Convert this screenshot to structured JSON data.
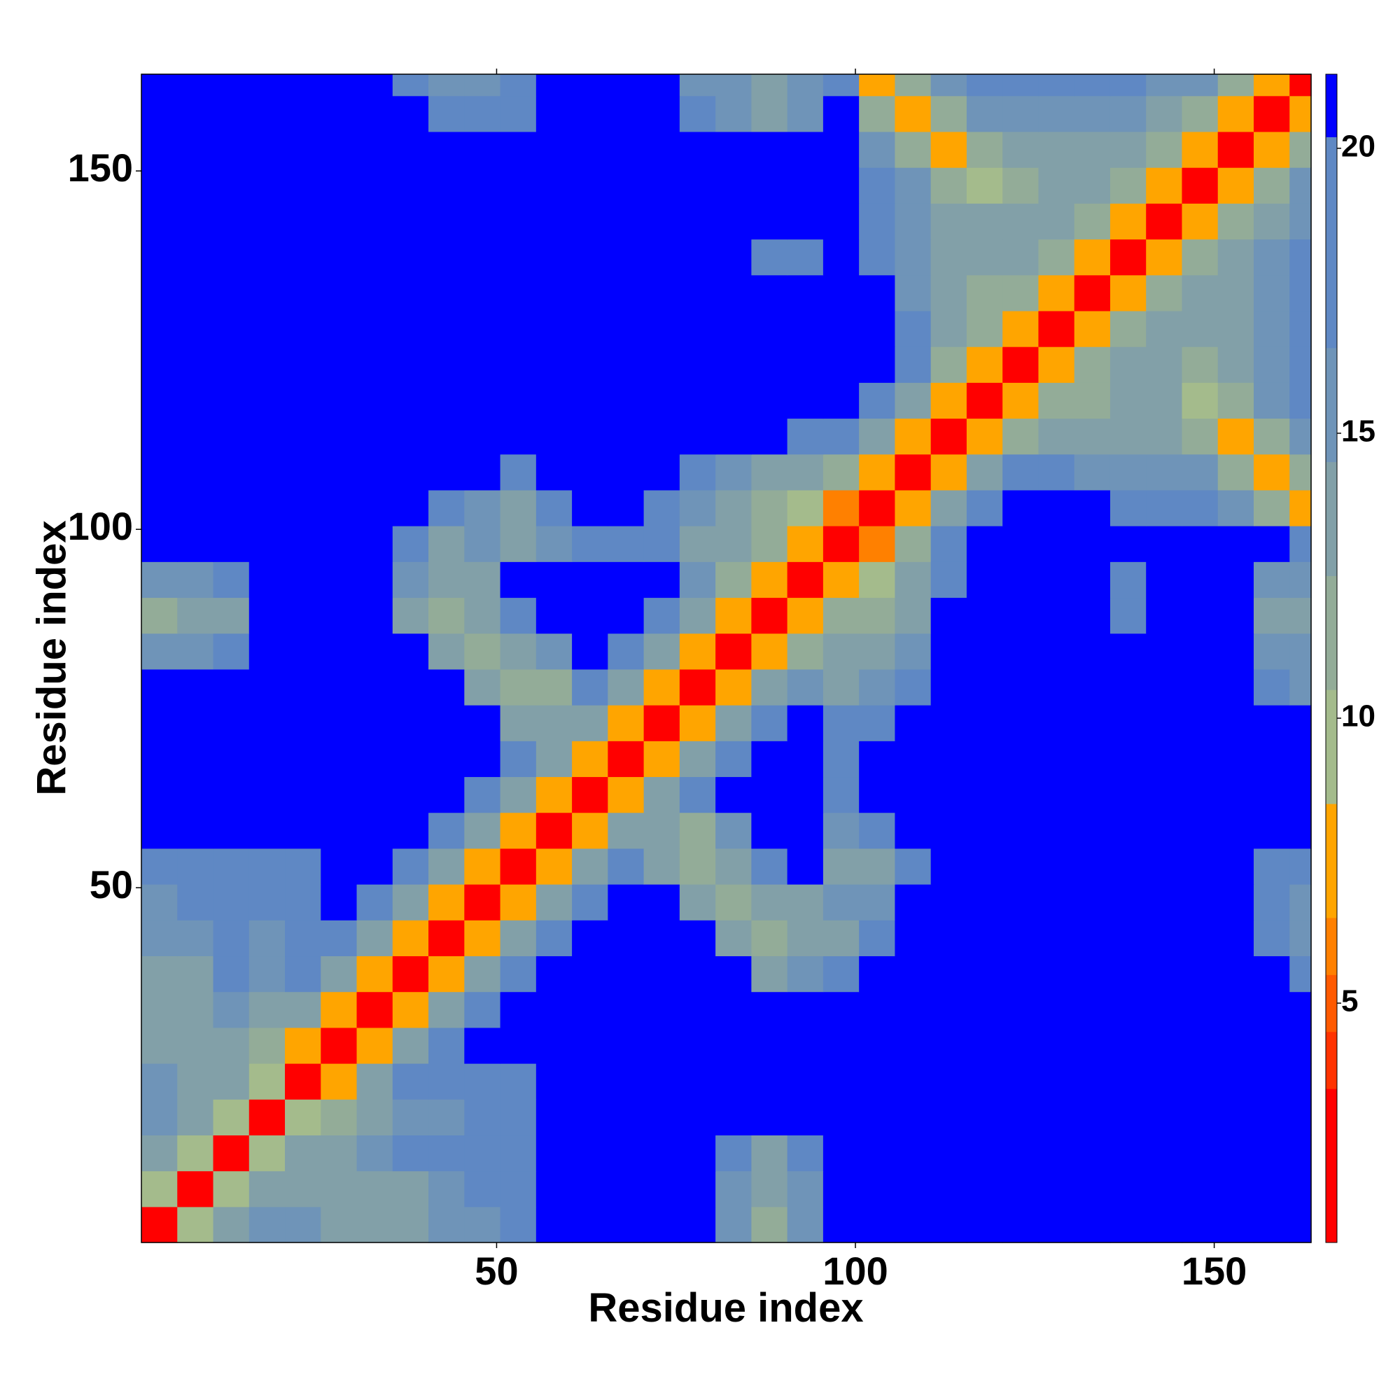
{
  "chart_data": {
    "type": "heatmap",
    "x_label": "Residue index",
    "y_label": "Residue index",
    "xlim": [
      0.5,
      163.5
    ],
    "ylim": [
      0.5,
      163.5
    ],
    "xticks": [
      50,
      100,
      150
    ],
    "yticks": [
      50,
      100,
      150
    ],
    "xbins": [
      0.5,
      5.5,
      10.5,
      15.5,
      20.5,
      25.5,
      30.5,
      35.5,
      40.5,
      45.5,
      50.5,
      55.5,
      60.5,
      65.5,
      70.5,
      75.5,
      80.5,
      85.5,
      90.5,
      95.5,
      100.5,
      105.5,
      110.5,
      115.5,
      120.5,
      125.5,
      130.5,
      135.5,
      140.5,
      145.5,
      150.5,
      155.5,
      160.5,
      163.5
    ],
    "ybins": [
      0.5,
      5.5,
      10.5,
      15.5,
      20.5,
      25.5,
      30.5,
      35.5,
      40.5,
      45.5,
      50.5,
      55.5,
      60.5,
      65.5,
      70.5,
      75.5,
      80.5,
      85.5,
      90.5,
      95.5,
      100.5,
      105.5,
      110.5,
      115.5,
      120.5,
      125.5,
      130.5,
      135.5,
      140.5,
      145.5,
      150.5,
      155.5,
      160.5,
      163.5
    ],
    "clim": [
      0.8,
      21.3
    ],
    "colorbar_ticks": [
      5,
      10,
      15,
      20
    ],
    "levels": [
      0.8,
      3.5,
      4.5,
      5.5,
      6.5,
      8.5,
      10.5,
      12.5,
      14.5,
      16.5,
      20.2,
      21.3
    ],
    "colors": [
      "#ff0000",
      "#ff3300",
      "#ff5a00",
      "#ff8000",
      "#ffa500",
      "#a4bb8c",
      "#93ac98",
      "#82a0a8",
      "#6f94b8",
      "#5f88c4",
      "#0000ff"
    ],
    "z": [
      [
        3,
        9,
        14,
        15,
        15,
        14,
        13,
        14,
        15,
        16,
        18,
        21,
        21,
        21,
        21,
        21,
        15,
        12,
        15,
        21,
        21,
        21,
        21,
        21,
        21,
        21,
        21,
        21,
        21,
        21,
        21,
        21,
        21
      ],
      [
        9,
        3,
        9,
        14,
        14,
        13,
        14,
        14,
        16,
        19,
        18,
        21,
        21,
        21,
        21,
        21,
        16,
        13,
        16,
        21,
        21,
        21,
        21,
        21,
        21,
        21,
        21,
        21,
        21,
        21,
        21,
        21,
        21
      ],
      [
        14,
        9,
        3,
        9,
        13,
        14,
        15,
        17,
        19,
        17,
        17,
        21,
        21,
        21,
        21,
        21,
        17,
        14,
        17,
        21,
        21,
        21,
        21,
        21,
        21,
        21,
        21,
        21,
        21,
        21,
        21,
        21,
        21
      ],
      [
        15,
        14,
        9,
        3,
        9,
        12,
        14,
        15,
        16,
        18,
        19,
        21,
        21,
        21,
        21,
        21,
        21,
        21,
        21,
        21,
        21,
        21,
        21,
        21,
        21,
        21,
        21,
        21,
        21,
        21,
        21,
        21,
        21
      ],
      [
        15,
        14,
        13,
        9,
        3,
        8,
        13,
        17,
        17,
        18,
        19,
        21,
        21,
        21,
        21,
        21,
        21,
        21,
        21,
        21,
        21,
        21,
        21,
        21,
        21,
        21,
        21,
        21,
        21,
        21,
        21,
        21,
        21
      ],
      [
        14,
        13,
        14,
        12,
        8,
        3,
        8,
        13,
        18,
        21,
        21,
        21,
        21,
        21,
        21,
        21,
        21,
        21,
        21,
        21,
        21,
        21,
        21,
        21,
        21,
        21,
        21,
        21,
        21,
        21,
        21,
        21,
        21
      ],
      [
        13,
        14,
        15,
        14,
        13,
        8,
        3,
        8,
        13,
        18,
        21,
        21,
        21,
        21,
        21,
        21,
        21,
        21,
        21,
        21,
        21,
        21,
        21,
        21,
        21,
        21,
        21,
        21,
        21,
        21,
        21,
        21,
        21
      ],
      [
        14,
        14,
        17,
        15,
        17,
        13,
        8,
        3,
        8,
        13,
        18,
        21,
        21,
        21,
        21,
        21,
        21,
        14,
        15,
        17,
        21,
        21,
        21,
        21,
        21,
        21,
        21,
        21,
        21,
        21,
        21,
        21,
        18
      ],
      [
        15,
        16,
        19,
        16,
        17,
        18,
        13,
        8,
        3,
        8,
        13,
        18,
        21,
        21,
        21,
        21,
        14,
        12,
        13,
        14,
        17,
        21,
        21,
        21,
        21,
        21,
        21,
        21,
        21,
        21,
        21,
        19,
        16
      ],
      [
        16,
        19,
        17,
        18,
        18,
        21,
        18,
        13,
        8,
        3,
        8,
        13,
        18,
        21,
        21,
        14,
        12,
        13,
        14,
        16,
        16,
        21,
        21,
        21,
        21,
        21,
        21,
        21,
        21,
        21,
        21,
        19,
        15
      ],
      [
        18,
        18,
        17,
        19,
        19,
        21,
        21,
        18,
        13,
        8,
        3,
        8,
        13,
        18,
        13,
        12,
        14,
        18,
        21,
        14,
        14,
        17,
        21,
        21,
        21,
        21,
        21,
        21,
        21,
        21,
        21,
        19,
        17
      ],
      [
        21,
        21,
        21,
        21,
        21,
        21,
        21,
        21,
        18,
        13,
        8,
        3,
        8,
        13,
        14,
        12,
        16,
        21,
        21,
        16,
        17,
        21,
        21,
        21,
        21,
        21,
        21,
        21,
        21,
        21,
        21,
        21,
        21
      ],
      [
        21,
        21,
        21,
        21,
        21,
        21,
        21,
        21,
        21,
        18,
        13,
        8,
        3,
        8,
        13,
        18,
        21,
        21,
        21,
        20,
        21,
        21,
        21,
        21,
        21,
        21,
        21,
        21,
        21,
        21,
        21,
        21,
        21
      ],
      [
        21,
        21,
        21,
        21,
        21,
        21,
        21,
        21,
        21,
        21,
        18,
        13,
        8,
        3,
        8,
        13,
        18,
        21,
        21,
        19,
        21,
        21,
        21,
        21,
        21,
        21,
        21,
        21,
        21,
        21,
        21,
        21,
        21
      ],
      [
        21,
        21,
        21,
        21,
        21,
        21,
        21,
        21,
        21,
        21,
        13,
        14,
        13,
        8,
        3,
        8,
        13,
        18,
        21,
        17,
        19,
        21,
        21,
        21,
        21,
        21,
        21,
        21,
        21,
        21,
        21,
        21,
        21
      ],
      [
        21,
        21,
        21,
        21,
        21,
        21,
        21,
        21,
        21,
        14,
        12,
        12,
        18,
        13,
        8,
        3,
        8,
        13,
        16,
        14,
        15,
        18,
        21,
        21,
        21,
        21,
        21,
        21,
        21,
        21,
        21,
        17,
        16
      ],
      [
        15,
        16,
        17,
        21,
        21,
        21,
        21,
        21,
        14,
        12,
        14,
        16,
        21,
        18,
        13,
        8,
        3,
        8,
        12,
        13,
        14,
        15,
        21,
        21,
        21,
        21,
        21,
        21,
        21,
        21,
        21,
        15,
        15
      ],
      [
        12,
        13,
        14,
        21,
        21,
        21,
        21,
        14,
        12,
        13,
        18,
        21,
        21,
        21,
        18,
        13,
        8,
        3,
        7,
        11,
        12,
        14,
        21,
        21,
        21,
        21,
        21,
        19,
        21,
        21,
        21,
        14,
        14
      ],
      [
        15,
        16,
        17,
        21,
        21,
        21,
        21,
        15,
        13,
        14,
        21,
        21,
        21,
        21,
        21,
        16,
        12,
        7,
        3,
        7,
        10,
        14,
        18,
        21,
        21,
        21,
        21,
        19,
        21,
        21,
        21,
        16,
        15
      ],
      [
        21,
        21,
        21,
        21,
        21,
        21,
        21,
        17,
        14,
        16,
        14,
        16,
        20,
        19,
        17,
        14,
        13,
        11,
        7,
        3,
        6,
        12,
        18,
        21,
        21,
        21,
        21,
        21,
        21,
        21,
        21,
        21,
        17
      ],
      [
        21,
        21,
        21,
        21,
        21,
        21,
        21,
        21,
        17,
        16,
        14,
        17,
        21,
        21,
        19,
        15,
        14,
        12,
        10,
        6,
        3,
        8,
        14,
        19,
        21,
        21,
        21,
        20,
        19,
        17,
        15,
        11,
        8
      ],
      [
        21,
        21,
        21,
        21,
        21,
        21,
        21,
        21,
        21,
        21,
        17,
        21,
        21,
        21,
        21,
        18,
        15,
        14,
        14,
        12,
        8,
        3,
        8,
        13,
        17,
        17,
        16,
        16,
        16,
        15,
        11,
        8,
        12
      ],
      [
        21,
        21,
        21,
        21,
        21,
        21,
        21,
        21,
        21,
        21,
        21,
        21,
        21,
        21,
        21,
        21,
        21,
        21,
        18,
        18,
        14,
        8,
        3,
        8,
        12,
        14,
        13,
        13,
        13,
        11,
        8,
        12,
        16
      ],
      [
        21,
        21,
        21,
        21,
        21,
        21,
        21,
        21,
        21,
        21,
        21,
        21,
        21,
        21,
        21,
        21,
        21,
        21,
        21,
        21,
        19,
        13,
        8,
        3,
        8,
        11,
        12,
        13,
        13,
        9,
        12,
        15,
        17
      ],
      [
        21,
        21,
        21,
        21,
        21,
        21,
        21,
        21,
        21,
        21,
        21,
        21,
        21,
        21,
        21,
        21,
        21,
        21,
        21,
        21,
        21,
        17,
        12,
        8,
        3,
        8,
        12,
        13,
        13,
        12,
        14,
        16,
        19
      ],
      [
        21,
        21,
        21,
        21,
        21,
        21,
        21,
        21,
        21,
        21,
        21,
        21,
        21,
        21,
        21,
        21,
        21,
        21,
        21,
        21,
        21,
        17,
        14,
        11,
        8,
        3,
        8,
        12,
        13,
        13,
        14,
        16,
        19
      ],
      [
        21,
        21,
        21,
        21,
        21,
        21,
        21,
        21,
        21,
        21,
        21,
        21,
        21,
        21,
        21,
        21,
        21,
        21,
        21,
        21,
        21,
        16,
        13,
        12,
        12,
        8,
        3,
        8,
        12,
        13,
        14,
        16,
        18
      ],
      [
        21,
        21,
        21,
        21,
        21,
        21,
        21,
        21,
        21,
        21,
        21,
        21,
        21,
        21,
        21,
        21,
        21,
        19,
        19,
        21,
        20,
        16,
        13,
        13,
        13,
        12,
        8,
        3,
        8,
        12,
        13,
        15,
        17
      ],
      [
        21,
        21,
        21,
        21,
        21,
        21,
        21,
        21,
        21,
        21,
        21,
        21,
        21,
        21,
        21,
        21,
        21,
        21,
        21,
        21,
        19,
        16,
        13,
        13,
        13,
        13,
        12,
        8,
        3,
        8,
        12,
        14,
        16
      ],
      [
        21,
        21,
        21,
        21,
        21,
        21,
        21,
        21,
        21,
        21,
        21,
        21,
        21,
        21,
        21,
        21,
        21,
        21,
        21,
        21,
        17,
        15,
        11,
        9,
        12,
        13,
        13,
        12,
        8,
        3,
        8,
        12,
        15
      ],
      [
        21,
        21,
        21,
        21,
        21,
        21,
        21,
        21,
        21,
        21,
        21,
        21,
        21,
        21,
        21,
        21,
        21,
        21,
        21,
        21,
        15,
        11,
        8,
        12,
        14,
        14,
        14,
        13,
        12,
        8,
        3,
        8,
        12
      ],
      [
        21,
        21,
        21,
        21,
        21,
        21,
        21,
        21,
        19,
        19,
        19,
        21,
        21,
        21,
        21,
        17,
        15,
        14,
        16,
        21,
        11,
        8,
        12,
        15,
        16,
        16,
        16,
        15,
        14,
        12,
        8,
        3,
        8
      ],
      [
        21,
        21,
        21,
        21,
        21,
        21,
        21,
        18,
        16,
        15,
        17,
        21,
        21,
        21,
        21,
        16,
        15,
        14,
        15,
        17,
        8,
        12,
        16,
        17,
        19,
        19,
        18,
        17,
        16,
        15,
        12,
        8,
        3
      ]
    ]
  }
}
